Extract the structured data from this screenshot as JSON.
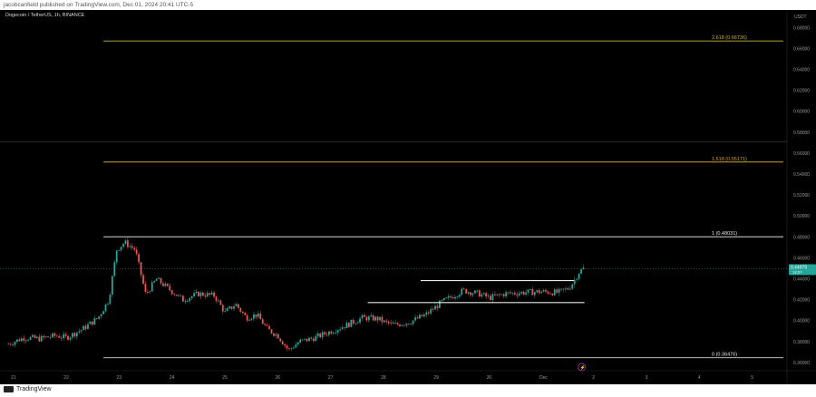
{
  "header": {
    "publish_text": "jacobcanfield published on TradingView.com, Dec 01, 2024 20:41 UTC-5"
  },
  "footer": {
    "logo_text": "TradingView"
  },
  "chart_data": {
    "type": "candlestick",
    "symbol_label": "Dogecoin / TetherUS, 1h, BINANCE",
    "currency": "USDT",
    "price_tag": "0.44979",
    "price_tag_sub": "19:07",
    "event_marker": "⚡",
    "x_ticks": [
      "21",
      "22",
      "23",
      "24",
      "25",
      "26",
      "27",
      "28",
      "29",
      "30",
      "Dec",
      "2",
      "3",
      "4",
      "5"
    ],
    "y_ticks": [
      "0.36000",
      "0.38000",
      "0.40000",
      "0.42000",
      "0.44000",
      "0.46000",
      "0.48000",
      "0.50000",
      "0.52000",
      "0.54000",
      "0.56000",
      "0.58000",
      "0.60000",
      "0.62000",
      "0.64000",
      "0.66000",
      "0.68000"
    ],
    "ylim": [
      0.355,
      0.69
    ],
    "fib_levels": [
      {
        "label": "2.618 (0.66736)",
        "value": 0.66736,
        "color": "#c9b43a"
      },
      {
        "label": "1.618 (0.55171)",
        "value": 0.55171,
        "color": "#c9a23a"
      },
      {
        "label": "1 (0.48031)",
        "value": 0.48031,
        "color": "#d6d6d6"
      },
      {
        "label": "0 (0.36476)",
        "value": 0.36476,
        "color": "#d6d6d6"
      }
    ],
    "horizontal_lines": [
      {
        "value": 0.4385,
        "x_start": 28.7,
        "x_end": 31.6
      },
      {
        "value": 0.4175,
        "x_start": 27.7,
        "x_end": 31.8
      }
    ],
    "price_path": [
      [
        20.9,
        0.378
      ],
      [
        21.2,
        0.384
      ],
      [
        21.5,
        0.383
      ],
      [
        21.8,
        0.386
      ],
      [
        22.0,
        0.384
      ],
      [
        22.3,
        0.392
      ],
      [
        22.6,
        0.403
      ],
      [
        22.8,
        0.42
      ],
      [
        22.95,
        0.468
      ],
      [
        23.1,
        0.475
      ],
      [
        23.3,
        0.468
      ],
      [
        23.5,
        0.425
      ],
      [
        23.7,
        0.44
      ],
      [
        23.9,
        0.432
      ],
      [
        24.2,
        0.42
      ],
      [
        24.5,
        0.426
      ],
      [
        24.8,
        0.424
      ],
      [
        25.0,
        0.408
      ],
      [
        25.2,
        0.416
      ],
      [
        25.4,
        0.403
      ],
      [
        25.6,
        0.406
      ],
      [
        25.8,
        0.392
      ],
      [
        26.0,
        0.386
      ],
      [
        26.2,
        0.372
      ],
      [
        26.4,
        0.38
      ],
      [
        26.7,
        0.384
      ],
      [
        27.0,
        0.39
      ],
      [
        27.3,
        0.396
      ],
      [
        27.6,
        0.403
      ],
      [
        27.9,
        0.402
      ],
      [
        28.0,
        0.399
      ],
      [
        28.2,
        0.396
      ],
      [
        28.5,
        0.399
      ],
      [
        28.8,
        0.406
      ],
      [
        29.1,
        0.418
      ],
      [
        29.5,
        0.429
      ],
      [
        29.8,
        0.426
      ],
      [
        30.0,
        0.422
      ],
      [
        30.3,
        0.426
      ],
      [
        30.6,
        0.427
      ],
      [
        31.0,
        0.428
      ],
      [
        31.3,
        0.427
      ],
      [
        31.5,
        0.431
      ],
      [
        31.6,
        0.438
      ],
      [
        31.7,
        0.447
      ],
      [
        31.78,
        0.4498
      ]
    ]
  }
}
